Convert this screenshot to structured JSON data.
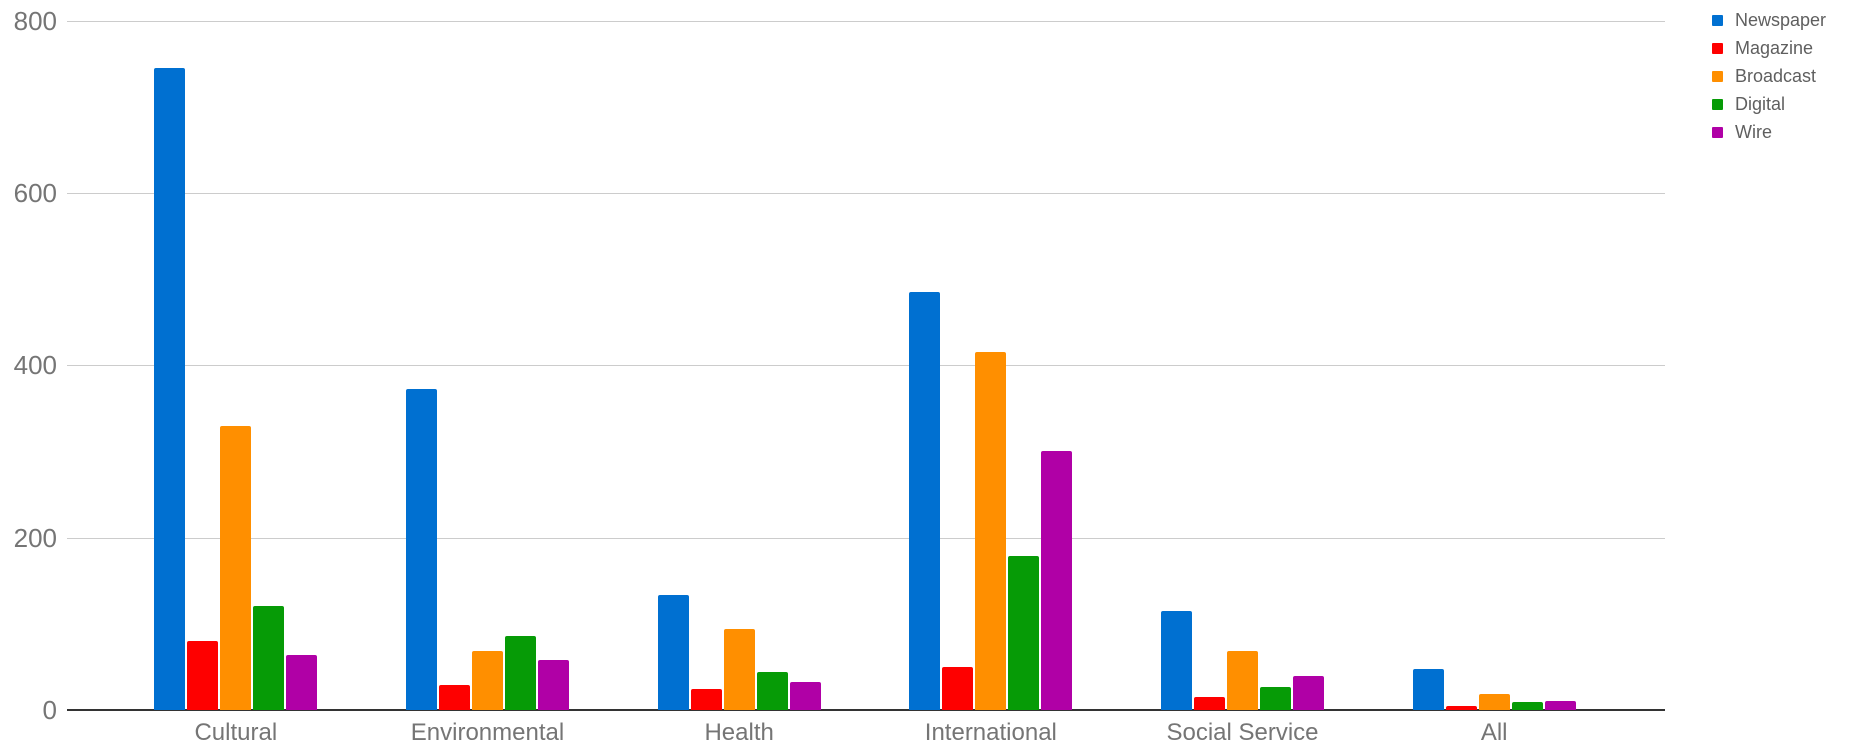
{
  "chart_data": {
    "type": "bar",
    "title": "",
    "categories": [
      "Cultural",
      "Environmental",
      "Health",
      "International",
      "Social Service",
      "All"
    ],
    "series": [
      {
        "name": "Newspaper",
        "color": "#0070d1",
        "values": [
          745,
          372,
          134,
          485,
          115,
          48
        ]
      },
      {
        "name": "Magazine",
        "color": "#fe0000",
        "values": [
          80,
          29,
          24,
          50,
          15,
          5
        ]
      },
      {
        "name": "Broadcast",
        "color": "#ff8f00",
        "values": [
          330,
          69,
          94,
          415,
          68,
          19
        ]
      },
      {
        "name": "Digital",
        "color": "#069b06",
        "values": [
          121,
          86,
          44,
          179,
          27,
          9
        ]
      },
      {
        "name": "Wire",
        "color": "#b000a6",
        "values": [
          64,
          58,
          33,
          300,
          40,
          11
        ]
      }
    ],
    "ylim": [
      0,
      800
    ],
    "yticks": [
      0,
      200,
      400,
      600,
      800
    ],
    "grid": true,
    "legend_position": "right",
    "xlabel": "",
    "ylabel": ""
  },
  "styles": {
    "background": "#ffffff",
    "grid_color": "#cccccc",
    "axis_color": "#333333",
    "tick_label_color": "#757575",
    "category_label_color": "#757575",
    "legend_text_color": "#5f5f5f"
  }
}
